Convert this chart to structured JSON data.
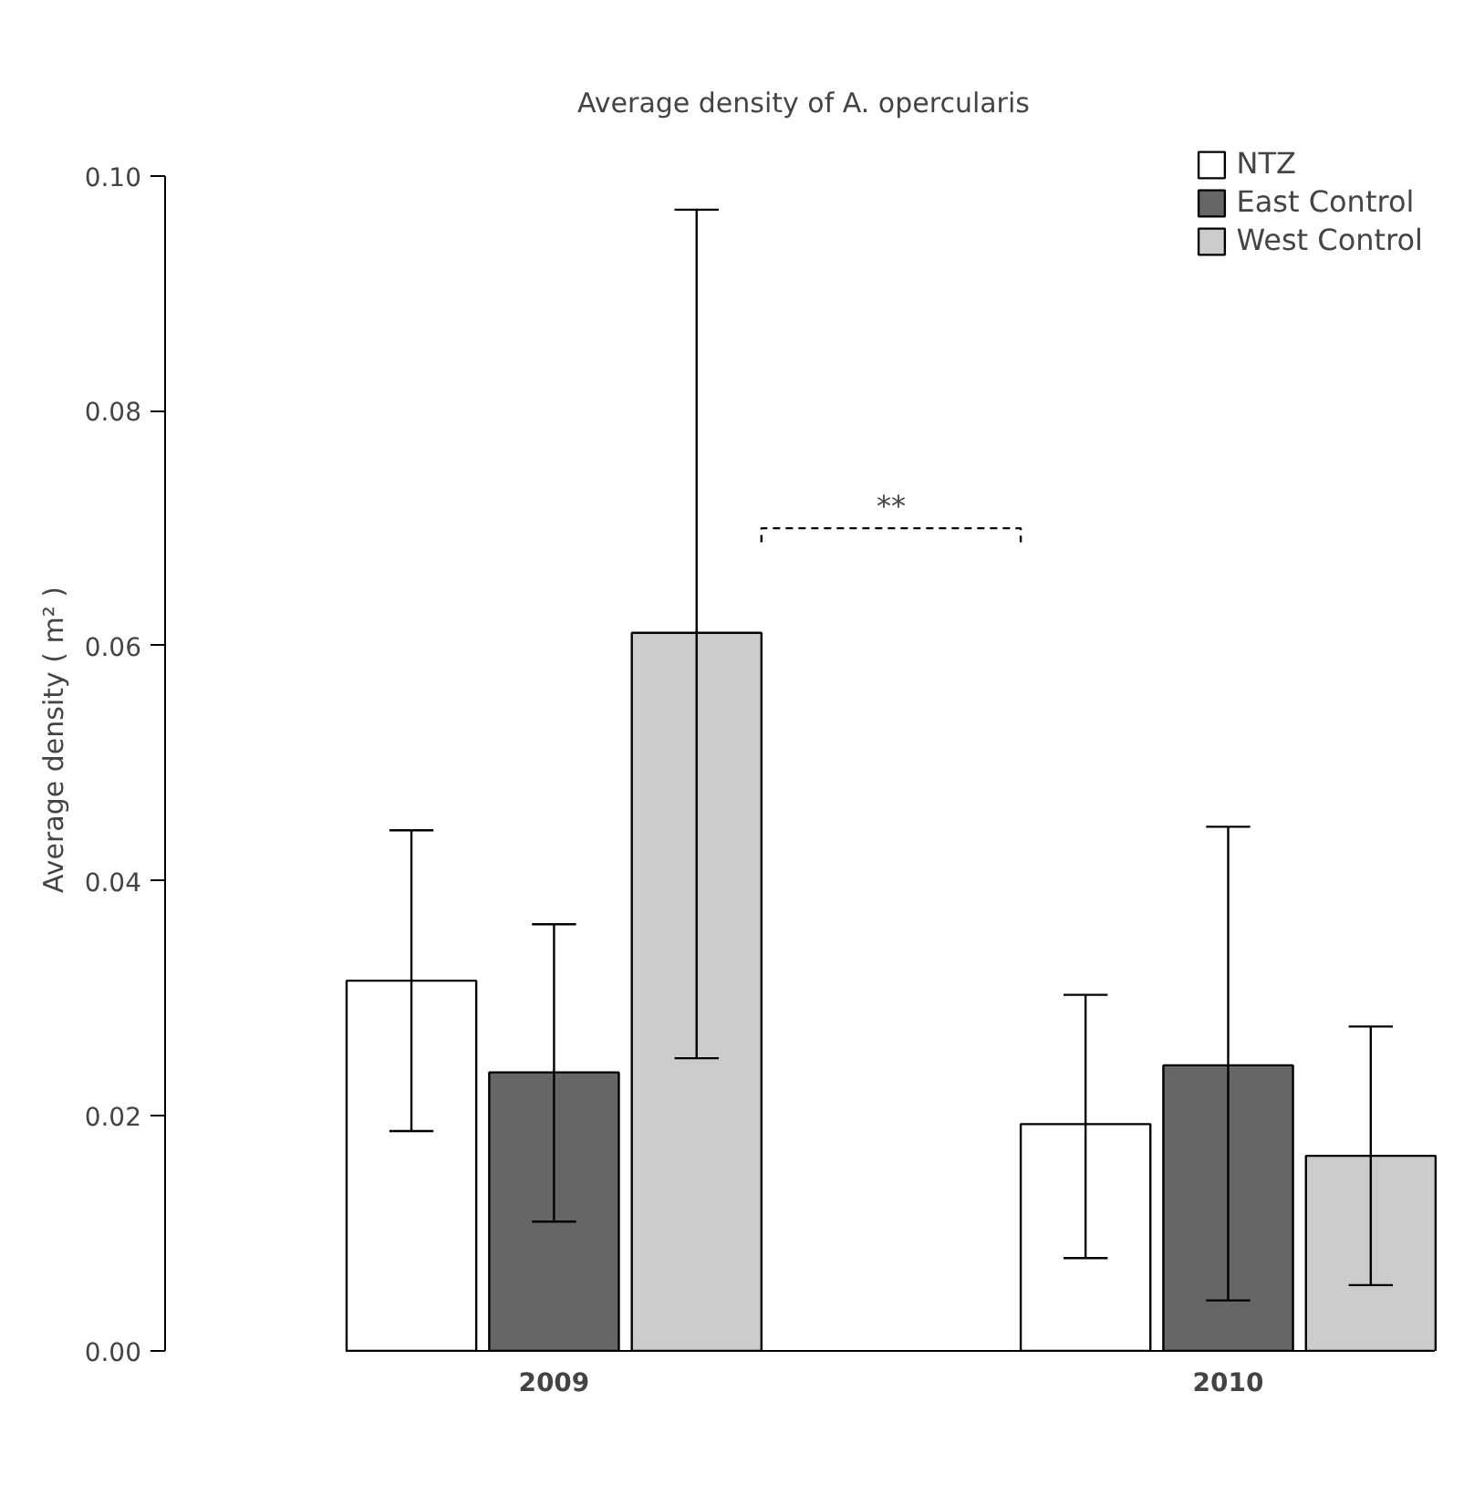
{
  "chart_data": {
    "type": "bar",
    "title": "Average density of A. opercularis",
    "ylabel": "Average density ( m² )",
    "categories": [
      "2009",
      "2010"
    ],
    "series": [
      {
        "name": "NTZ",
        "color": "#ffffff",
        "values": [
          0.0315,
          0.0193
        ],
        "errors": [
          [
            0.0187,
            0.0443
          ],
          [
            0.0079,
            0.0303
          ]
        ]
      },
      {
        "name": "East Control",
        "color": "#666666",
        "values": [
          0.0237,
          0.0243
        ],
        "errors": [
          [
            0.011,
            0.0363
          ],
          [
            0.0043,
            0.0446
          ]
        ]
      },
      {
        "name": "West Control",
        "color": "#cccccc",
        "values": [
          0.0611,
          0.0166
        ],
        "errors": [
          [
            0.0249,
            0.0971
          ],
          [
            0.0056,
            0.0276
          ]
        ]
      }
    ],
    "ylim": [
      0,
      0.1
    ],
    "yticks": [
      {
        "value": 0,
        "label": "0.00"
      },
      {
        "value": 0.02,
        "label": "0.02"
      },
      {
        "value": 0.04,
        "label": "0.04"
      },
      {
        "value": 0.06,
        "label": "0.06"
      },
      {
        "value": 0.08,
        "label": "0.08"
      },
      {
        "value": 0.1,
        "label": "0.10"
      }
    ],
    "annotations": [
      "**"
    ],
    "grid": false,
    "legend": "top right"
  }
}
